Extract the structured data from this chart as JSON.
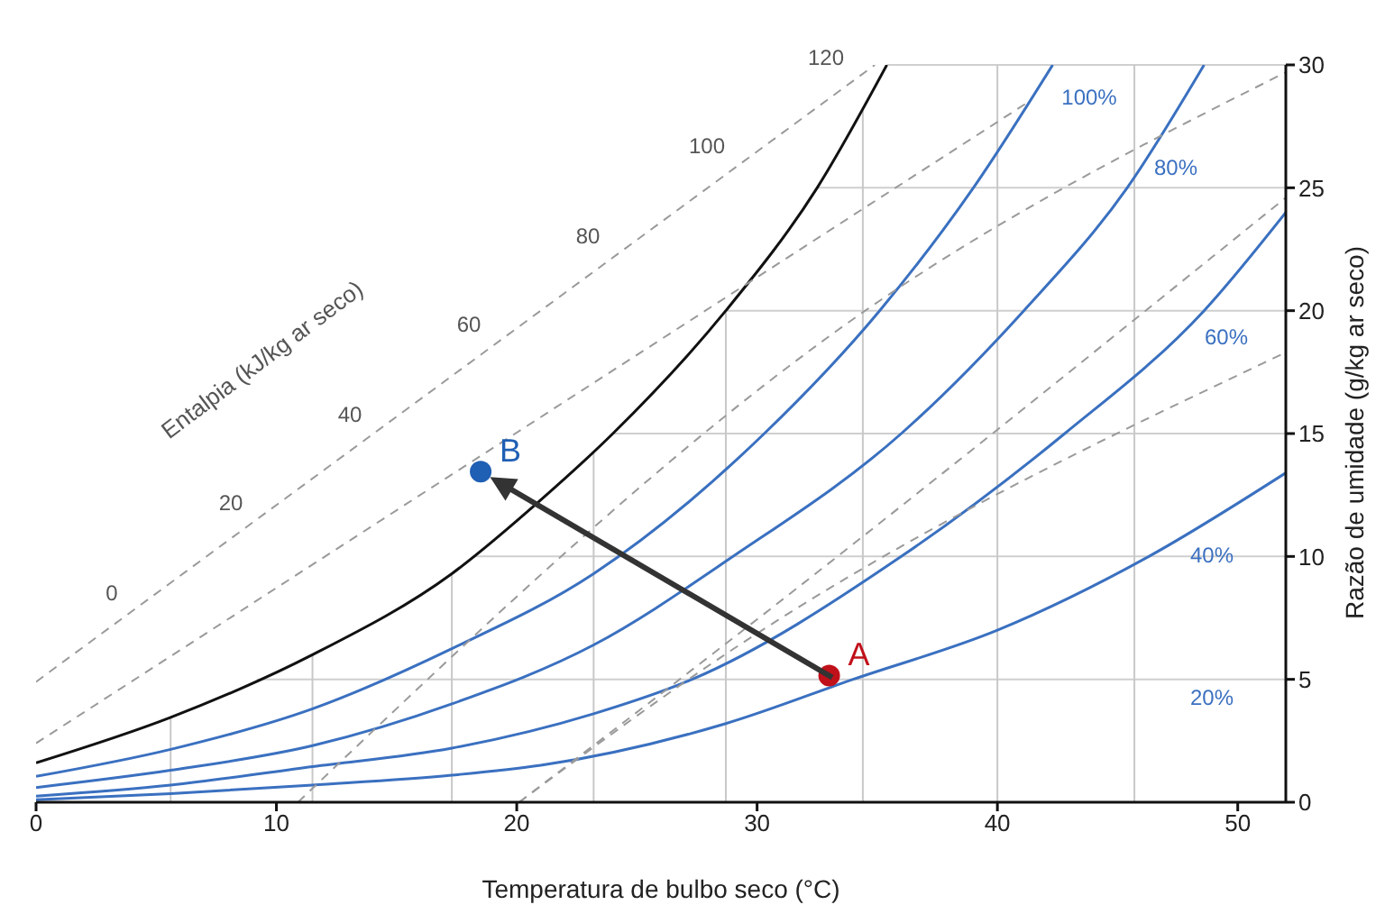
{
  "chart_data": {
    "type": "line",
    "xlabel": "Temperatura de bulbo seco (°C)",
    "ylabel": "Razão de umidade (g/kg ar seco)",
    "xlim": [
      0,
      52
    ],
    "ylim": [
      0,
      30
    ],
    "xticks": [
      0,
      10,
      20,
      30,
      40,
      50
    ],
    "yticks": [
      0,
      5,
      10,
      15,
      20,
      25,
      30
    ],
    "series": [
      {
        "type": "line",
        "color": "#111111",
        "line_style": "solid",
        "x": [
          0,
          5.6,
          11.5,
          17.3,
          21.0,
          24.0,
          28.7,
          32.5,
          35.4
        ],
        "values": [
          1.6,
          3.45,
          6.0,
          9.3,
          12.3,
          15,
          20,
          25,
          30
        ]
      },
      {
        "type": "line",
        "color": "#3a70c0",
        "line_style": "solid",
        "x": [
          0,
          5.6,
          11.5,
          17.3,
          23.2,
          30.3,
          35.1,
          39.0,
          42.3
        ],
        "values": [
          1.05,
          2.15,
          3.8,
          6.25,
          9.3,
          15,
          20,
          25,
          30
        ]
      },
      {
        "type": "line",
        "color": "#3a70c0",
        "line_style": "solid",
        "x": [
          0,
          5.6,
          11.5,
          17.3,
          23.2,
          29.0,
          36.0,
          41.1,
          45.4,
          48.6
        ],
        "values": [
          0.6,
          1.3,
          2.3,
          4.0,
          6.4,
          10,
          15,
          20,
          25,
          30
        ]
      },
      {
        "type": "line",
        "color": "#3a70c0",
        "line_style": "solid",
        "x": [
          0,
          5.6,
          11.5,
          17.3,
          23.2,
          27.3,
          36.0,
          42.8,
          48.6,
          52
        ],
        "values": [
          0.25,
          0.7,
          1.45,
          2.2,
          3.6,
          5,
          10,
          15,
          20,
          24.0
        ]
      },
      {
        "type": "line",
        "color": "#3a70c0",
        "line_style": "solid",
        "x": [
          0,
          5.6,
          11.5,
          17.3,
          21.0,
          28.7,
          34.0,
          40.0,
          46.3,
          52
        ],
        "values": [
          0.1,
          0.35,
          0.7,
          1.1,
          1.5,
          3.2,
          5,
          7.0,
          10,
          13.4
        ]
      },
      {
        "type": "line",
        "color": "#9a9a9a",
        "line_style": "dashed",
        "x": [
          0,
          34.9
        ],
        "values": [
          4.9,
          30.0
        ]
      },
      {
        "type": "line",
        "color": "#9a9a9a",
        "line_style": "dashed",
        "x": [
          0,
          41.3
        ],
        "values": [
          2.4,
          28.5
        ]
      },
      {
        "type": "line",
        "color": "#9a9a9a",
        "line_style": "dashed",
        "x": [
          10.9,
          34.5,
          52
        ],
        "values": [
          0,
          20.0,
          29.7
        ]
      },
      {
        "type": "line",
        "color": "#9a9a9a",
        "line_style": "dashed",
        "x": [
          20.1,
          28.5,
          52
        ],
        "values": [
          0,
          6.3,
          24.6
        ]
      },
      {
        "type": "line",
        "color": "#9a9a9a",
        "line_style": "dashed",
        "x": [
          20.1,
          28.5,
          52
        ],
        "values": [
          0,
          5.9,
          18.3
        ]
      },
      {
        "type": "scatter",
        "name": "A",
        "color": "#c0101a",
        "marker": "circle",
        "x": [
          33.0
        ],
        "values": [
          5.15
        ]
      },
      {
        "type": "scatter",
        "name": "B",
        "color": "#1f5fb4",
        "marker": "circle",
        "x": [
          18.5
        ],
        "values": [
          13.45
        ]
      }
    ],
    "ref_lines": [
      {
        "axis": "y",
        "value": 5,
        "color": "#cfcfcf"
      },
      {
        "axis": "y",
        "value": 10,
        "color": "#cfcfcf"
      },
      {
        "axis": "y",
        "value": 15,
        "color": "#cfcfcf"
      },
      {
        "axis": "y",
        "value": 20,
        "color": "#cfcfcf"
      },
      {
        "axis": "y",
        "value": 25,
        "color": "#cfcfcf"
      },
      {
        "axis": "y",
        "value": 30,
        "color": "#cfcfcf"
      },
      {
        "axis": "x",
        "value": 5.6,
        "color": "#c8c8c8"
      },
      {
        "axis": "x",
        "value": 11.5,
        "color": "#c8c8c8"
      },
      {
        "axis": "x",
        "value": 17.3,
        "color": "#c8c8c8"
      },
      {
        "axis": "x",
        "value": 23.2,
        "color": "#c8c8c8"
      },
      {
        "axis": "x",
        "value": 28.7,
        "color": "#c8c8c8"
      },
      {
        "axis": "x",
        "value": 34.4,
        "color": "#c8c8c8"
      },
      {
        "axis": "x",
        "value": 40,
        "color": "#c8c8c8"
      },
      {
        "axis": "x",
        "value": 45.7,
        "color": "#c8c8c8"
      }
    ],
    "annotations": [
      "Entalpia (kJ/kg ar seco)",
      "0",
      "20",
      "40",
      "60",
      "80",
      "100",
      "120",
      "100%",
      "80%",
      "60%",
      "40%",
      "20%"
    ]
  }
}
